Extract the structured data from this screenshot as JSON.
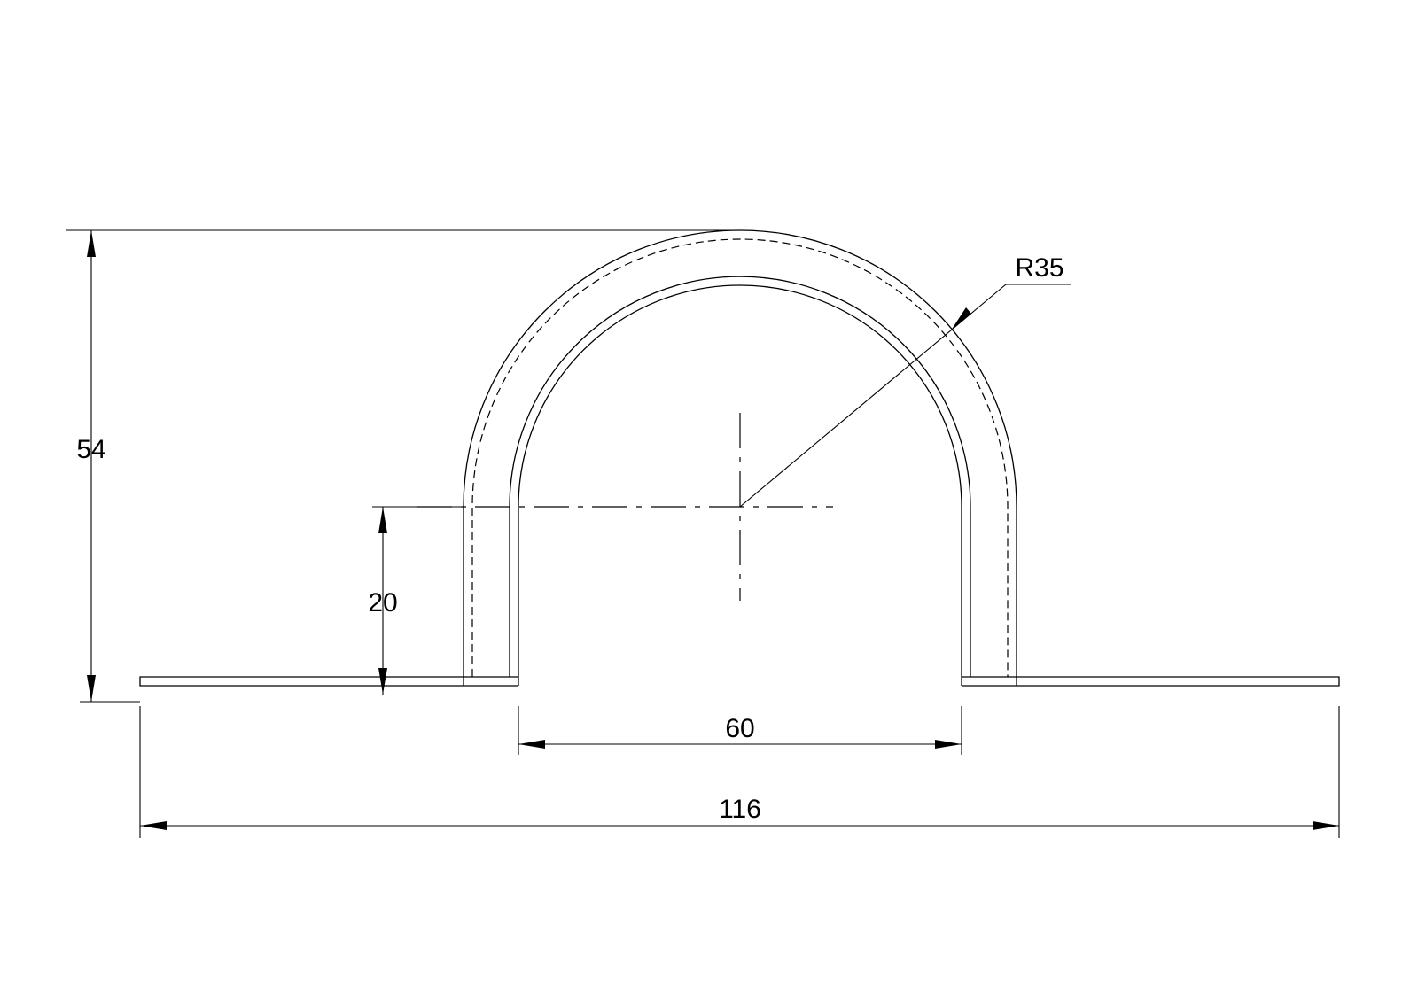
{
  "dimensions": {
    "overall_height": "54",
    "leg_height": "20",
    "inner_width": "60",
    "overall_width": "116",
    "bend_radius": "R35"
  }
}
